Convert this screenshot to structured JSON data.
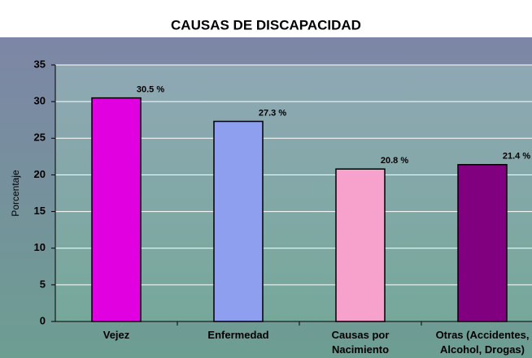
{
  "chart_data": {
    "type": "bar",
    "title": "CAUSAS DE DISCAPACIDAD",
    "y_label": "Porcentaje",
    "categories": [
      "Vejez",
      "Enfermedad",
      "Causas por\nNacimiento",
      "Otras (Accidentes,\nAlcohol, Drogas)"
    ],
    "values": [
      30.5,
      27.3,
      20.8,
      21.4
    ],
    "value_labels": [
      "30.5 %",
      "27.3 %",
      "20.8 %",
      "21.4 %"
    ],
    "colors": [
      "#e000e0",
      "#8f9ff0",
      "#f6a2cc",
      "#800080"
    ],
    "ylim": [
      0,
      35
    ],
    "yticks": [
      0,
      5,
      10,
      15,
      20,
      25,
      30,
      35
    ],
    "grid": true
  }
}
